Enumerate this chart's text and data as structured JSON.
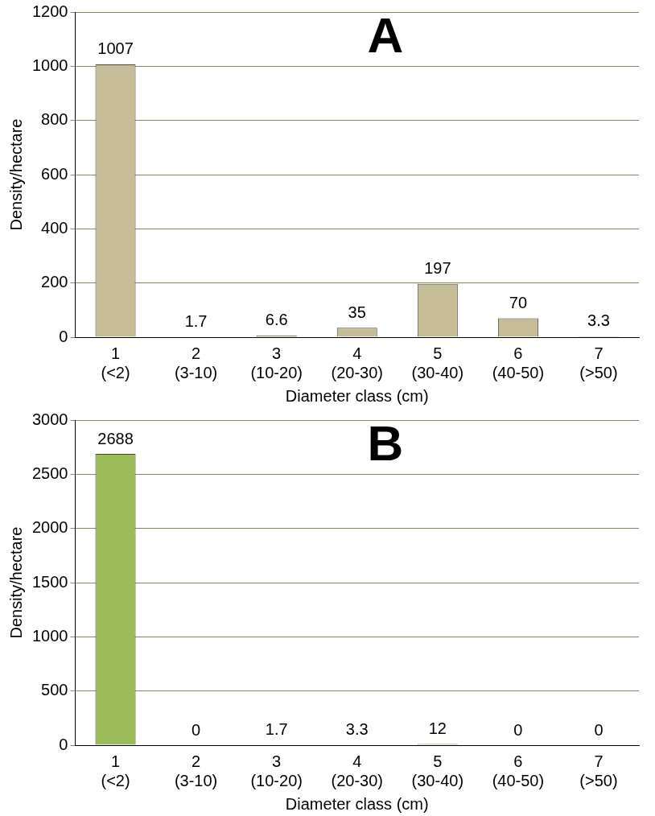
{
  "chart_data": [
    {
      "type": "bar",
      "title": "A",
      "categories": [
        "1\n(<2)",
        "2\n(3-10)",
        "3\n(10-20)",
        "4\n(20-30)",
        "5\n(30-40)",
        "6\n(40-50)",
        "7\n(>50)"
      ],
      "values": [
        1007,
        1.7,
        6.6,
        35,
        197,
        70,
        3.3
      ],
      "color": "#c4bd97",
      "xlabel": "Diameter class (cm)",
      "ylabel": "Density/hectare",
      "ylim": [
        0,
        1200
      ],
      "yticks": [
        0,
        200,
        400,
        600,
        800,
        1000,
        1200
      ],
      "grid": "y",
      "data_labels": true,
      "legend": false
    },
    {
      "type": "bar",
      "title": "B",
      "categories": [
        "1\n(<2)",
        "2\n(3-10)",
        "3\n(10-20)",
        "4\n(20-30)",
        "5\n(30-40)",
        "6\n(40-50)",
        "7\n(>50)"
      ],
      "values": [
        2688,
        0,
        1.7,
        3.3,
        12,
        0,
        0
      ],
      "data_labels": true,
      "color": "#9bbb59",
      "xlabel": "Diameter class (cm)",
      "ylabel": "Density/hectare",
      "ylim": [
        0,
        3000
      ],
      "yticks": [
        0,
        500,
        1000,
        1500,
        2000,
        2500,
        3000
      ],
      "grid": "y",
      "legend": false
    }
  ]
}
